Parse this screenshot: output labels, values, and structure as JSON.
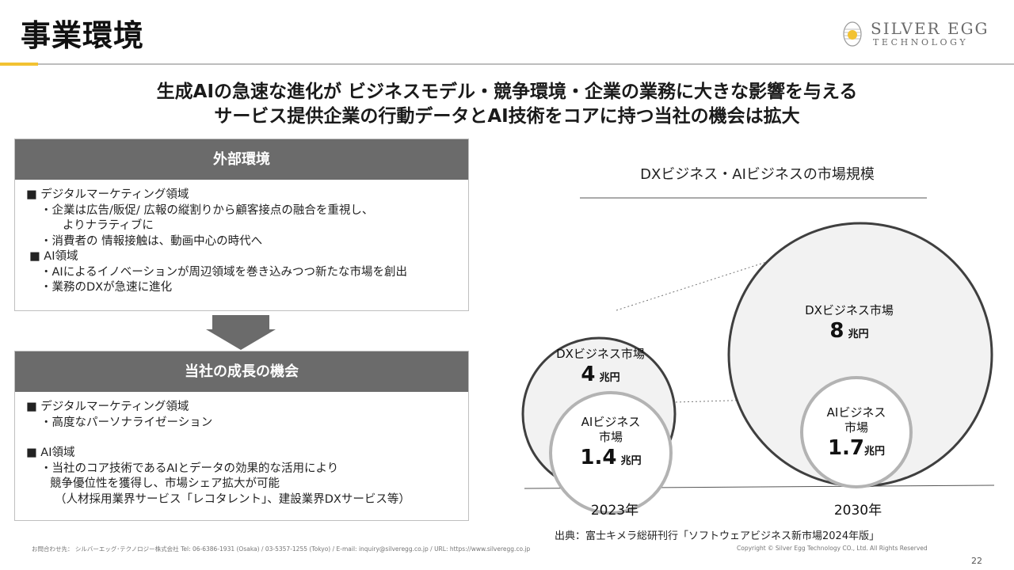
{
  "page": {
    "title": "事業環境",
    "headline_1": "生成AIの急速な進化が ビジネスモデル・競争環境・企業の業務に大きな影響を与える",
    "headline_2": "サービス提供企業の行動データとAI技術をコアに持つ当社の機会は拡大",
    "page_number": "22"
  },
  "logo": {
    "line1": "SILVER EGG",
    "line2": "TECHNOLOGY"
  },
  "external": {
    "header": "外部環境",
    "lines": [
      "■ デジタルマーケティング領域",
      "・企業は広告/販促/ 広報の縦割りから顧客接点の融合を重視し、",
      "よりナラティブに",
      "・消費者の 情報接触は、動画中心の時代へ",
      "■ AI領域",
      "・AIによるイノベーションが周辺領域を巻き込みつつ新たな市場を創出",
      "・業務のDXが急速に進化"
    ]
  },
  "opportunity": {
    "header": "当社の成長の機会",
    "lines": [
      "■ デジタルマーケティング領域",
      "・高度なパーソナライゼーション",
      "■ AI領域",
      "・当社のコア技術であるAIとデータの効果的な活用により",
      "競争優位性を獲得し、市場シェア拡大が可能",
      "（人材採用業界サービス「レコタレント」、建設業界DXサービス等）"
    ]
  },
  "chart_data": {
    "type": "bubble",
    "title": "DXビジネス・AIビジネスの市場規模",
    "unit": "兆円",
    "categories": [
      "2023年",
      "2030年"
    ],
    "series": [
      {
        "name": "DXビジネス市場",
        "values": [
          4,
          8
        ]
      },
      {
        "name": "AIビジネス市場",
        "values": [
          1.4,
          1.7
        ]
      }
    ],
    "labels": {
      "dx": "DXビジネス市場",
      "ai_line1": "AIビジネス",
      "ai_line2": "市場",
      "dx_2023": "4",
      "dx_2030": "8",
      "ai_2023": "1.4",
      "ai_2030": "1.7",
      "unit": "兆円"
    },
    "colors": {
      "dx_stroke": "#3f3f3f",
      "dx_fill": "#f2f2f2",
      "ai_stroke": "#b3b3b3",
      "ai_fill": "#ffffff"
    }
  },
  "source": "出典：富士キメラ総研刊行「ソフトウェアビジネス新市場2024年版」",
  "footer": {
    "contact": "お問合わせ先：  シルバーエッグ･テクノロジー株式会社      Tel: 06-6386-1931 (Osaka) / 03-5357-1255 (Tokyo) / E-mail: inquiry@silveregg.co.jp / URL: https://www.silveregg.co.jp",
    "copyright": "Copyright © Silver Egg Technology CO., Ltd. All Rights Reserved"
  }
}
